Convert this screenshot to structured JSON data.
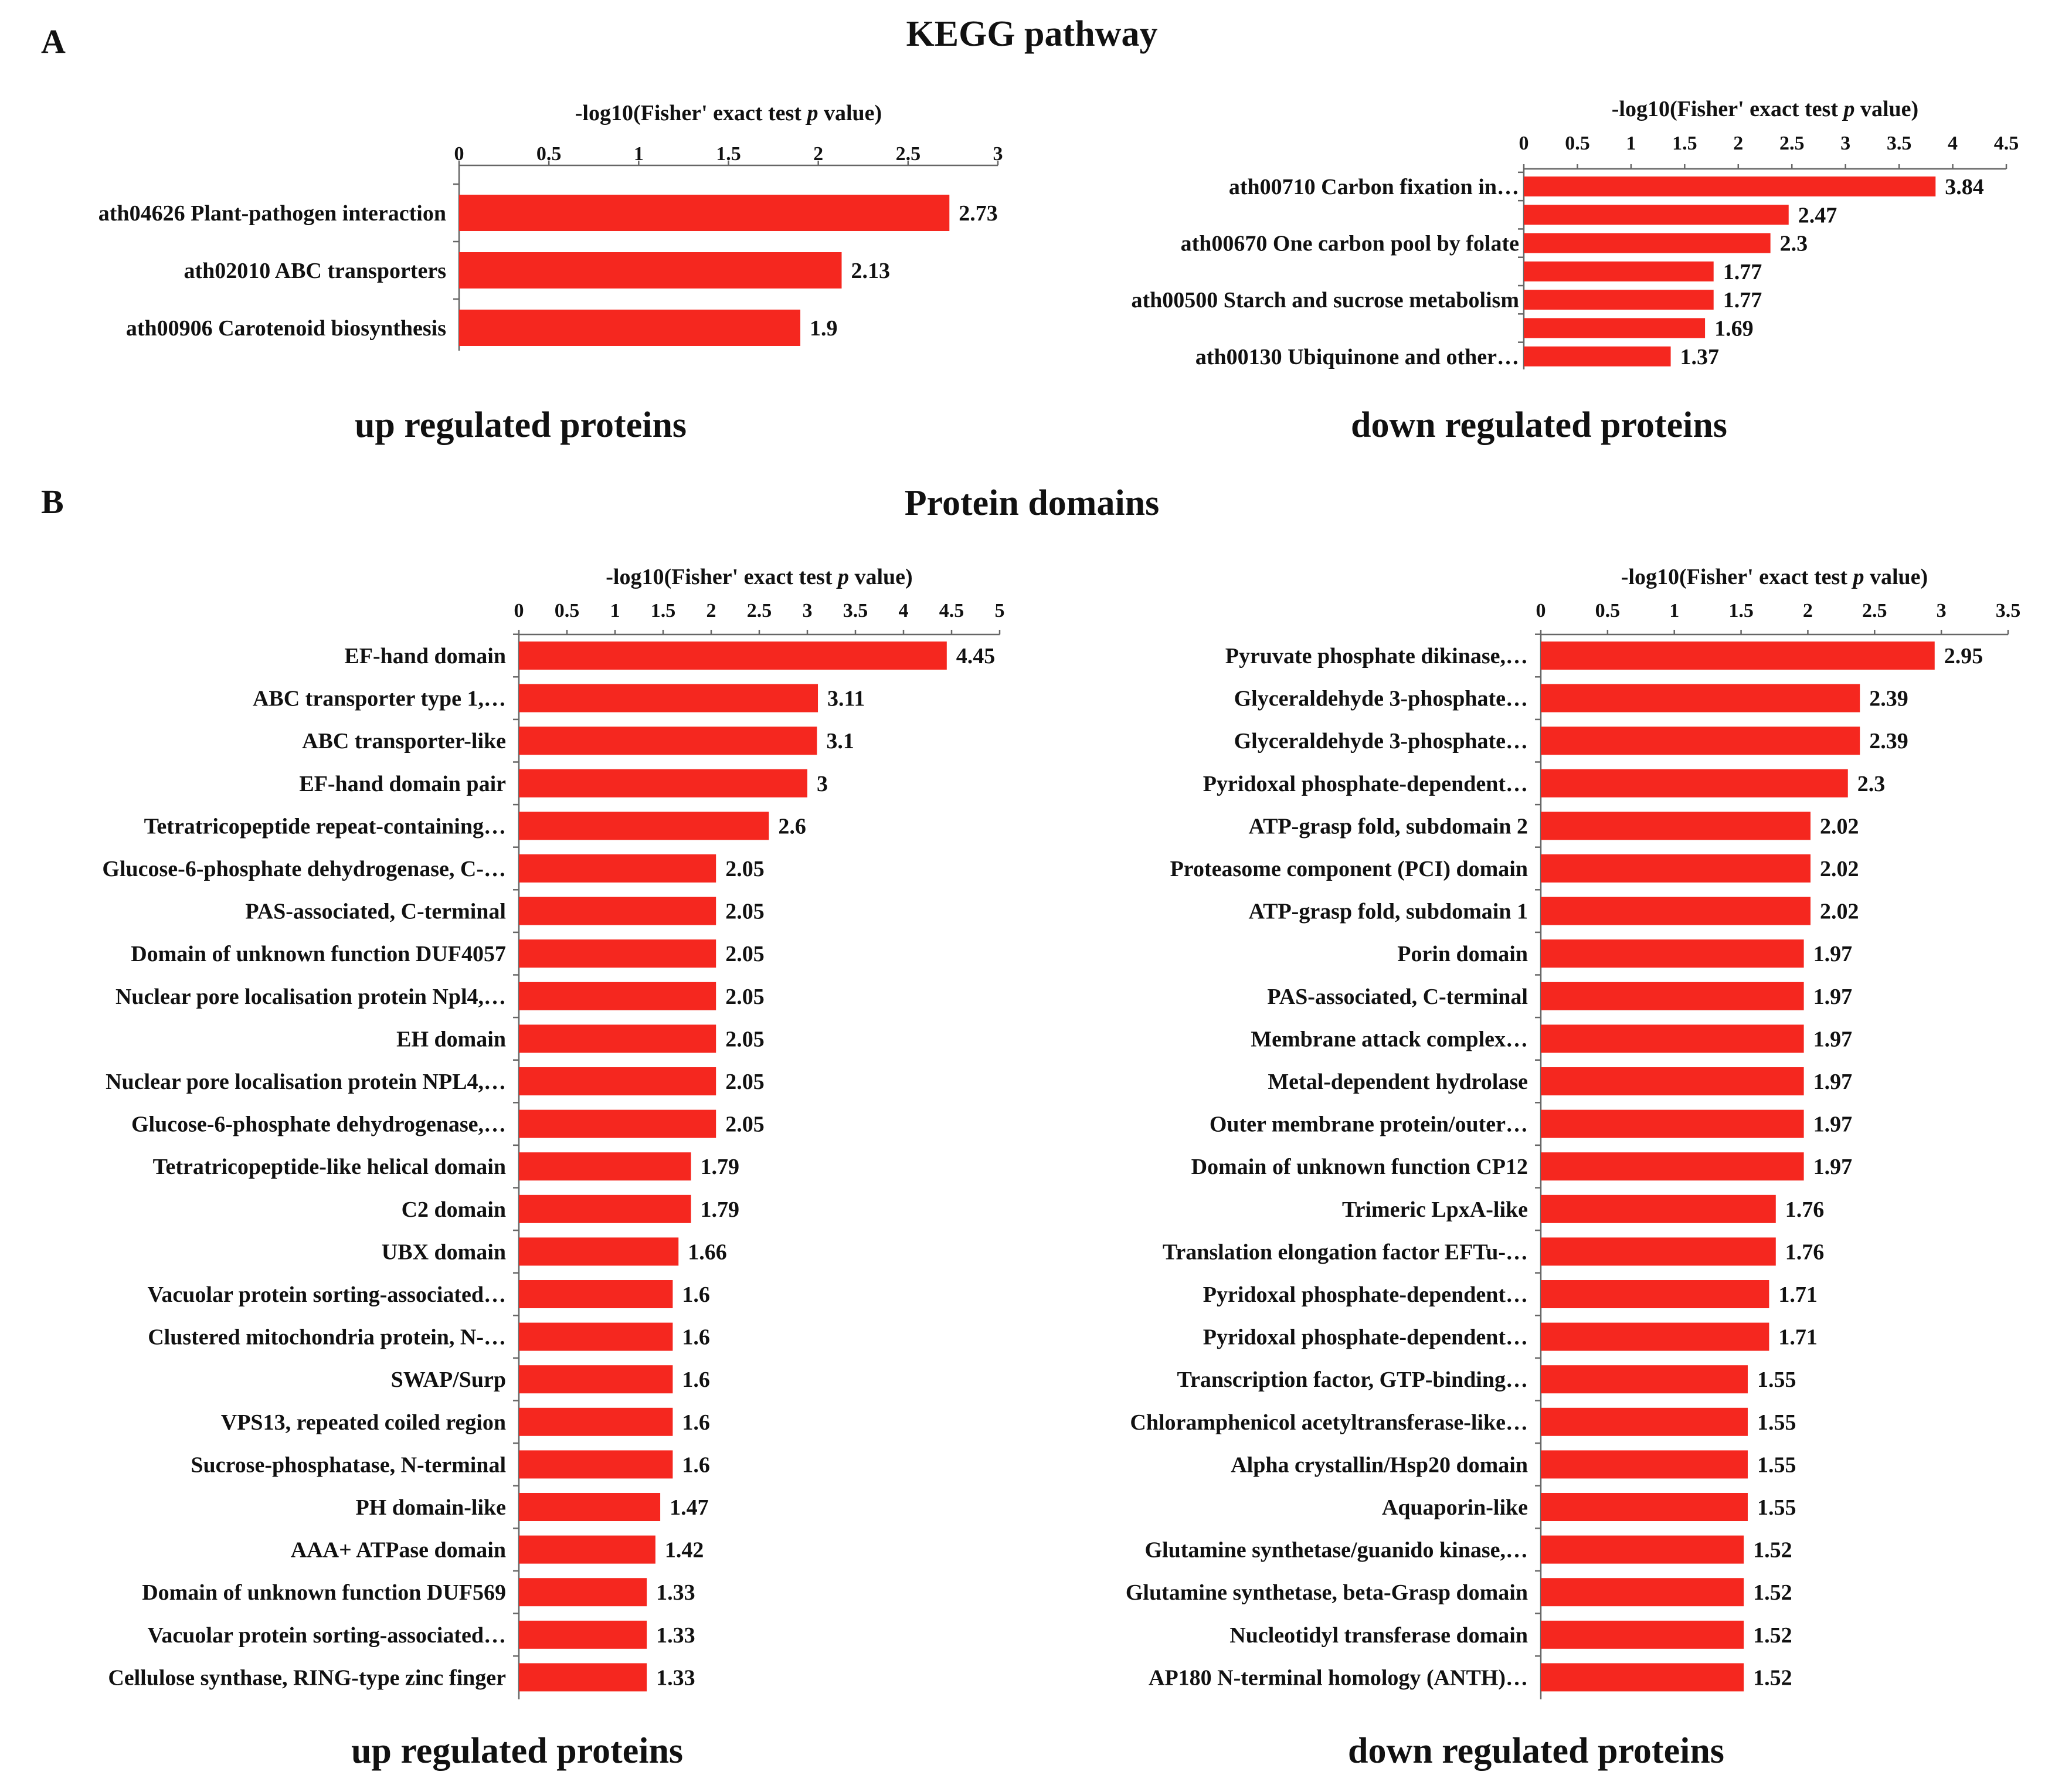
{
  "panel_a": {
    "letter": "A",
    "title": "KEGG pathway"
  },
  "panel_b": {
    "letter": "B",
    "title": "Protein domains"
  },
  "colors": {
    "bar": "#f5271f",
    "text": "#111111",
    "axis": "#666666"
  },
  "chart_data": [
    {
      "id": "kegg_up",
      "type": "bar",
      "orientation": "horizontal",
      "xlabel": "-log10(Fisher' exact test p value)",
      "subtitle": "up regulated proteins",
      "xlim": [
        0,
        3
      ],
      "ticks": [
        "0",
        "0.5",
        "1",
        "1.5",
        "2",
        "2.5",
        "3"
      ],
      "categories": [
        "ath04626 Plant-pathogen interaction",
        "ath02010 ABC transporters",
        "ath00906 Carotenoid biosynthesis"
      ],
      "values": [
        2.73,
        2.13,
        1.9
      ],
      "value_labels": [
        "2.73",
        "2.13",
        "1.9"
      ]
    },
    {
      "id": "kegg_down",
      "type": "bar",
      "orientation": "horizontal",
      "xlabel": "-log10(Fisher' exact test p value)",
      "subtitle": "down regulated proteins",
      "xlim": [
        0,
        4.5
      ],
      "ticks": [
        "0",
        "0.5",
        "1",
        "1.5",
        "2",
        "2.5",
        "3",
        "3.5",
        "4",
        "4.5"
      ],
      "categories": [
        "ath00710 Carbon fixation in…",
        "",
        "ath00670 One carbon pool by folate",
        "",
        "ath00500 Starch and sucrose metabolism",
        "",
        "ath00130 Ubiquinone and other…"
      ],
      "values": [
        3.84,
        2.47,
        2.3,
        1.77,
        1.77,
        1.69,
        1.37
      ],
      "value_labels": [
        "3.84",
        "2.47",
        "2.3",
        "1.77",
        "1.77",
        "1.69",
        "1.37"
      ],
      "category_labels_shown": [
        0,
        2,
        4,
        6
      ]
    },
    {
      "id": "domain_up",
      "type": "bar",
      "orientation": "horizontal",
      "xlabel": "-log10(Fisher' exact test p value)",
      "subtitle": "up regulated proteins",
      "xlim": [
        0,
        5
      ],
      "ticks": [
        "0",
        "0.5",
        "1",
        "1.5",
        "2",
        "2.5",
        "3",
        "3.5",
        "4",
        "4.5",
        "5"
      ],
      "categories": [
        "EF-hand domain",
        "ABC transporter type 1,…",
        "ABC transporter-like",
        "EF-hand domain pair",
        "Tetratricopeptide repeat-containing…",
        "Glucose-6-phosphate dehydrogenase, C-…",
        "PAS-associated, C-terminal",
        "Domain of unknown function DUF4057",
        "Nuclear pore localisation protein Npl4,…",
        "EH domain",
        "Nuclear pore localisation protein NPL4,…",
        "Glucose-6-phosphate dehydrogenase,…",
        "Tetratricopeptide-like helical domain",
        "C2 domain",
        "UBX domain",
        "Vacuolar protein sorting-associated…",
        "Clustered mitochondria protein, N-…",
        "SWAP/Surp",
        "VPS13, repeated coiled region",
        "Sucrose-phosphatase, N-terminal",
        "PH domain-like",
        "AAA+ ATPase domain",
        "Domain of unknown function DUF569",
        "Vacuolar protein sorting-associated…",
        "Cellulose synthase, RING-type zinc finger"
      ],
      "values": [
        4.45,
        3.11,
        3.1,
        3,
        2.6,
        2.05,
        2.05,
        2.05,
        2.05,
        2.05,
        2.05,
        2.05,
        1.79,
        1.79,
        1.66,
        1.6,
        1.6,
        1.6,
        1.6,
        1.6,
        1.47,
        1.42,
        1.33,
        1.33,
        1.33
      ],
      "value_labels": [
        "4.45",
        "3.11",
        "3.1",
        "3",
        "2.6",
        "2.05",
        "2.05",
        "2.05",
        "2.05",
        "2.05",
        "2.05",
        "2.05",
        "1.79",
        "1.79",
        "1.66",
        "1.6",
        "1.6",
        "1.6",
        "1.6",
        "1.6",
        "1.47",
        "1.42",
        "1.33",
        "1.33",
        "1.33"
      ]
    },
    {
      "id": "domain_down",
      "type": "bar",
      "orientation": "horizontal",
      "xlabel": "-log10(Fisher' exact test p value)",
      "subtitle": "down regulated proteins",
      "xlim": [
        0,
        3.5
      ],
      "ticks": [
        "0",
        "0.5",
        "1",
        "1.5",
        "2",
        "2.5",
        "3",
        "3.5"
      ],
      "categories": [
        "Pyruvate phosphate dikinase,…",
        "Glyceraldehyde 3-phosphate…",
        "Glyceraldehyde 3-phosphate…",
        "Pyridoxal phosphate-dependent…",
        "ATP-grasp fold, subdomain 2",
        "Proteasome component (PCI) domain",
        "ATP-grasp fold, subdomain 1",
        "Porin domain",
        "PAS-associated, C-terminal",
        "Membrane attack complex…",
        "Metal-dependent hydrolase",
        "Outer membrane protein/outer…",
        "Domain of unknown function CP12",
        "Trimeric LpxA-like",
        "Translation elongation factor EFTu-…",
        "Pyridoxal phosphate-dependent…",
        "Pyridoxal phosphate-dependent…",
        "Transcription factor, GTP-binding…",
        "Chloramphenicol acetyltransferase-like…",
        "Alpha crystallin/Hsp20 domain",
        "Aquaporin-like",
        "Glutamine synthetase/guanido kinase,…",
        "Glutamine synthetase, beta-Grasp domain",
        "Nucleotidyl transferase domain",
        "AP180 N-terminal homology (ANTH)…"
      ],
      "values": [
        2.95,
        2.39,
        2.39,
        2.3,
        2.02,
        2.02,
        2.02,
        1.97,
        1.97,
        1.97,
        1.97,
        1.97,
        1.97,
        1.76,
        1.76,
        1.71,
        1.71,
        1.55,
        1.55,
        1.55,
        1.55,
        1.52,
        1.52,
        1.52,
        1.52
      ],
      "value_labels": [
        "2.95",
        "2.39",
        "2.39",
        "2.3",
        "2.02",
        "2.02",
        "2.02",
        "1.97",
        "1.97",
        "1.97",
        "1.97",
        "1.97",
        "1.97",
        "1.76",
        "1.76",
        "1.71",
        "1.71",
        "1.55",
        "1.55",
        "1.55",
        "1.55",
        "1.52",
        "1.52",
        "1.52",
        "1.52"
      ]
    }
  ]
}
